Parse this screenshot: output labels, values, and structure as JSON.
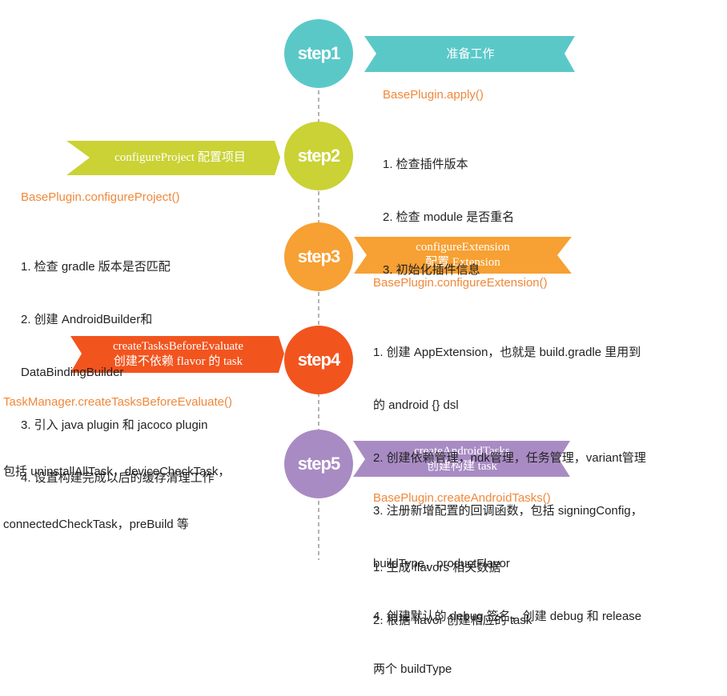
{
  "colors": {
    "step1": "#5bc8c8",
    "step2": "#cad235",
    "step3": "#f7a033",
    "step4": "#f2541e",
    "step5": "#a98bc4",
    "method": "#f0883a",
    "timeline": "#9a9a9a"
  },
  "steps": [
    {
      "label": "step1",
      "title": "准备工作",
      "method": "BasePlugin.apply()",
      "details": [
        "1. 检查插件版本",
        "2. 检查 module 是否重名",
        "3. 初始化插件信息"
      ]
    },
    {
      "label": "step2",
      "title": "configureProject 配置项目",
      "method": "BasePlugin.configureProject()",
      "details": [
        "1. 检查 gradle 版本是否匹配",
        "2. 创建 AndroidBuilder和",
        "DataBindingBuilder",
        "3. 引入 java plugin 和 jacoco plugin",
        "4. 设置构建完成以后的缓存清理工作"
      ]
    },
    {
      "label": "step3",
      "title": [
        "configureExtension",
        "配置 Extension"
      ],
      "method": "BasePlugin.configureExtension()",
      "details": [
        "1. 创建 AppExtension，也就是 build.gradle 里用到",
        "的 android {} dsl",
        "2. 创建依赖管理，ndk管理，任务管理，variant管理",
        "3. 注册新增配置的回调函数，包括 signingConfig，",
        "buildType，productFlavor",
        "4. 创建默认的 debug 签名，创建 debug 和 release",
        "两个 buildType"
      ]
    },
    {
      "label": "step4",
      "title": [
        "createTasksBeforeEvaluate",
        "创建不依赖 flavor 的 task"
      ],
      "method": "TaskManager.createTasksBeforeEvaluate()",
      "details": [
        "包括 uninstallAllTask，deviceCheckTask，",
        "connectedCheckTask，preBuild 等"
      ]
    },
    {
      "label": "step5",
      "title": [
        "createAndroidTasks",
        "创建构建 task"
      ],
      "method": "BasePlugin.createAndroidTasks()",
      "details": [
        "1. 生成 flavors 相关数据",
        "2. 根据 flavor 创建相应的 task"
      ]
    }
  ]
}
